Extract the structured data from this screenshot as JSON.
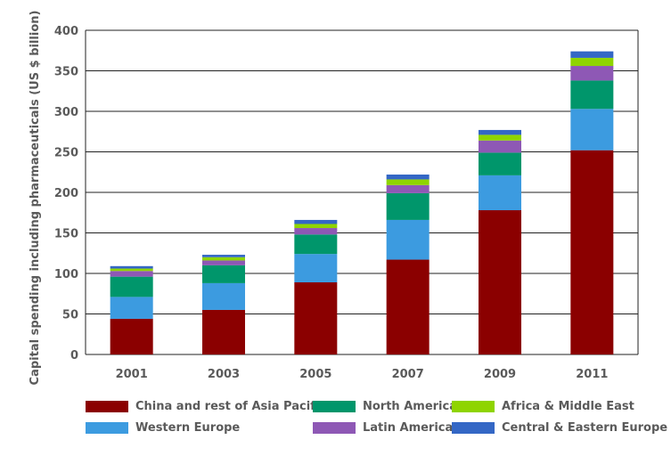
{
  "chart_data": {
    "type": "bar",
    "stacked": true,
    "title": "",
    "xlabel": "",
    "ylabel": "Capital spending including pharmaceuticals (US $ billion)",
    "categories": [
      "2001",
      "2003",
      "2005",
      "2007",
      "2009",
      "2011"
    ],
    "ylim": [
      0,
      400
    ],
    "yticks": [
      0,
      50,
      100,
      150,
      200,
      250,
      300,
      350,
      400
    ],
    "grid": true,
    "legend_position": "bottom",
    "series": [
      {
        "name": "China and rest of Asia Pacific",
        "color": "#8b0000",
        "values": [
          44,
          55,
          89,
          117,
          178,
          252
        ]
      },
      {
        "name": "Western Europe",
        "color": "#3c9be0",
        "values": [
          27,
          33,
          35,
          49,
          43,
          51
        ]
      },
      {
        "name": "North America",
        "color": "#00966b",
        "values": [
          25,
          22,
          24,
          33,
          28,
          35
        ]
      },
      {
        "name": "Latin America",
        "color": "#8e58b5",
        "values": [
          7,
          6,
          8,
          10,
          15,
          18
        ]
      },
      {
        "name": "Africa & Middle East",
        "color": "#8fd400",
        "values": [
          3,
          4,
          5,
          7,
          7,
          10
        ]
      },
      {
        "name": "Central & Eastern Europe",
        "color": "#3467c5",
        "values": [
          3,
          3,
          5,
          6,
          6,
          8
        ]
      }
    ]
  },
  "legend_order": [
    "China and rest of Asia Pacific",
    "North America",
    "Africa & Middle East",
    "Western Europe",
    "Latin America",
    "Central & Eastern Europe"
  ]
}
